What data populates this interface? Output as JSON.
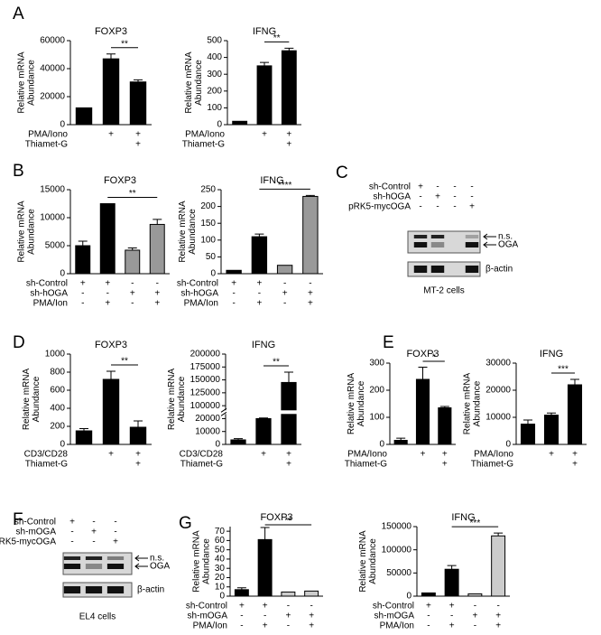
{
  "chart_data": [
    {
      "type": "bar",
      "panel": "A",
      "title": "FOXP3",
      "y_label": [
        "Relative mRNA",
        "Abundance"
      ],
      "values": [
        12000,
        47000,
        30500
      ],
      "errors": [
        null,
        3500,
        1500
      ],
      "colors": [
        "#000000",
        "#000000",
        "#000000"
      ],
      "ylim": [
        0,
        60000
      ],
      "yticks": [
        0,
        20000,
        40000,
        60000
      ],
      "conditions": [
        {
          "label": "PMA/Iono",
          "values": [
            null,
            "+",
            "+"
          ]
        },
        {
          "label": "Thiamet-G",
          "values": [
            null,
            null,
            "+"
          ]
        }
      ],
      "significance": {
        "label": "**",
        "from": 1,
        "to": 2
      }
    },
    {
      "type": "bar",
      "title": "IFNG",
      "y_label": [
        "Relative mRNA",
        "Abundance"
      ],
      "values": [
        20,
        350,
        440
      ],
      "errors": [
        null,
        20,
        15
      ],
      "colors": [
        "#000000",
        "#000000",
        "#000000"
      ],
      "ylim": [
        0,
        500
      ],
      "yticks": [
        0,
        100,
        200,
        300,
        400,
        500
      ],
      "conditions": [
        {
          "label": "PMA/Iono",
          "values": [
            null,
            "+",
            "+"
          ]
        },
        {
          "label": "Thiamet-G",
          "values": [
            null,
            null,
            "+"
          ]
        }
      ],
      "significance": {
        "label": "**",
        "from": 1,
        "to": 2
      }
    },
    {
      "type": "bar",
      "panel": "B",
      "title": "FOXP3",
      "y_label": [
        "Relative mRNA",
        "Abundance"
      ],
      "values": [
        5000,
        12500,
        4200,
        8800
      ],
      "errors": [
        800,
        null,
        400,
        900
      ],
      "colors": [
        "#000000",
        "#000000",
        "#999999",
        "#999999"
      ],
      "ylim": [
        0,
        15000
      ],
      "yticks": [
        0,
        5000,
        10000,
        15000
      ],
      "conditions": [
        {
          "label": "sh-Control",
          "values": [
            "+",
            "+",
            "-",
            "-"
          ]
        },
        {
          "label": "sh-hOGA",
          "values": [
            "-",
            "-",
            "+",
            "+"
          ]
        },
        {
          "label": "PMA/Ion",
          "values": [
            "-",
            "+",
            "-",
            "+"
          ]
        }
      ],
      "significance": {
        "label": "**",
        "from": 1,
        "to": 3
      }
    },
    {
      "type": "bar",
      "title": "IFNG",
      "y_label": [
        "Relative mRNA",
        "Abundance"
      ],
      "values": [
        10,
        110,
        25,
        230
      ],
      "errors": [
        null,
        8,
        null,
        3
      ],
      "colors": [
        "#000000",
        "#000000",
        "#999999",
        "#999999"
      ],
      "ylim": [
        0,
        250
      ],
      "yticks": [
        0,
        50,
        100,
        150,
        200,
        250
      ],
      "conditions": [
        {
          "label": "sh-Control",
          "values": [
            "+",
            "+",
            "-",
            "-"
          ]
        },
        {
          "label": "sh-hOGA",
          "values": [
            "-",
            "-",
            "+",
            "+"
          ]
        },
        {
          "label": "PMA/Ion",
          "values": [
            "-",
            "+",
            "-",
            "+"
          ]
        }
      ],
      "significance": {
        "label": "****",
        "from": 1,
        "to": 3
      }
    },
    {
      "type": "bar",
      "panel": "D",
      "title": "FOXP3",
      "y_label": [
        "Relative mRNA",
        "Abundance"
      ],
      "values": [
        150,
        720,
        190
      ],
      "errors": [
        25,
        90,
        70
      ],
      "colors": [
        "#000000",
        "#000000",
        "#000000"
      ],
      "ylim": [
        0,
        1000
      ],
      "yticks": [
        0,
        200,
        400,
        600,
        800,
        1000
      ],
      "conditions": [
        {
          "label": "CD3/CD28",
          "values": [
            null,
            "+",
            "+"
          ]
        },
        {
          "label": "Thiamet-G",
          "values": [
            null,
            null,
            "+"
          ]
        }
      ],
      "significance": {
        "label": "**",
        "from": 1,
        "to": 2
      }
    },
    {
      "type": "bar",
      "title": "IFNG",
      "y_label": [
        "Relative mRNA",
        "Abundance"
      ],
      "values": [
        3500,
        20000,
        145000
      ],
      "errors": [
        1000,
        4000,
        20000
      ],
      "colors": [
        "#000000",
        "#000000",
        "#000000"
      ],
      "ylim": [
        0,
        200000
      ],
      "yticks": [
        0,
        10000,
        20000,
        100000,
        125000,
        150000,
        175000,
        200000
      ],
      "axis_break": true,
      "conditions": [
        {
          "label": "CD3/CD28",
          "values": [
            null,
            "+",
            "+"
          ]
        },
        {
          "label": "Thiamet-G",
          "values": [
            null,
            null,
            "+"
          ]
        }
      ],
      "significance": {
        "label": "**",
        "from": 1,
        "to": 2
      }
    },
    {
      "type": "bar",
      "panel": "E",
      "title": "FOXP3",
      "y_label": [
        "Relative mRNA",
        "Abundance"
      ],
      "values": [
        15,
        240,
        135
      ],
      "errors": [
        8,
        45,
        5
      ],
      "colors": [
        "#000000",
        "#000000",
        "#000000"
      ],
      "ylim": [
        0,
        300
      ],
      "yticks": [
        0,
        100,
        200,
        300
      ],
      "conditions": [
        {
          "label": "PMA/Iono",
          "values": [
            null,
            "+",
            "+"
          ]
        },
        {
          "label": "Thiamet-G",
          "values": [
            null,
            null,
            "+"
          ]
        }
      ],
      "significance": {
        "label": "*",
        "from": 1,
        "to": 2
      }
    },
    {
      "type": "bar",
      "title": "IFNG",
      "y_label": [
        "Relative mRNA",
        "Abundance"
      ],
      "values": [
        7500,
        10800,
        22000
      ],
      "errors": [
        1500,
        800,
        2000
      ],
      "colors": [
        "#000000",
        "#000000",
        "#000000"
      ],
      "ylim": [
        0,
        30000
      ],
      "yticks": [
        0,
        10000,
        20000,
        30000
      ],
      "conditions": [
        {
          "label": "PMA/Iono",
          "values": [
            null,
            "+",
            "+"
          ]
        },
        {
          "label": "Thiamet-G",
          "values": [
            null,
            null,
            "+"
          ]
        }
      ],
      "significance": {
        "label": "***",
        "from": 1,
        "to": 2
      }
    },
    {
      "type": "bar",
      "panel": "G",
      "title": "FOXP3",
      "y_label": [
        "Relative mRNA",
        "Abundance"
      ],
      "values": [
        7,
        61,
        4.5,
        5.5
      ],
      "errors": [
        2,
        13,
        null,
        null
      ],
      "colors": [
        "#000000",
        "#000000",
        "#cccccc",
        "#cccccc"
      ],
      "ylim": [
        0,
        75
      ],
      "yticks": [
        0,
        10,
        20,
        30,
        40,
        50,
        60,
        70
      ],
      "conditions": [
        {
          "label": "sh-Control",
          "values": [
            "+",
            "+",
            "-",
            "-"
          ]
        },
        {
          "label": "sh-mOGA",
          "values": [
            "-",
            "-",
            "+",
            "+"
          ]
        },
        {
          "label": "PMA/Ion",
          "values": [
            "-",
            "+",
            "-",
            "+"
          ]
        }
      ],
      "significance": {
        "label": "**",
        "from": 1,
        "to": 3
      }
    },
    {
      "type": "bar",
      "title": "IFNG",
      "y_label": [
        "Relative mRNA",
        "Abundance"
      ],
      "values": [
        7000,
        58000,
        5000,
        130000
      ],
      "errors": [
        null,
        8000,
        null,
        6000
      ],
      "colors": [
        "#000000",
        "#000000",
        "#cccccc",
        "#cccccc"
      ],
      "ylim": [
        0,
        150000
      ],
      "yticks": [
        0,
        50000,
        100000,
        150000
      ],
      "conditions": [
        {
          "label": "sh-Control",
          "values": [
            "+",
            "+",
            "-",
            "-"
          ]
        },
        {
          "label": "sh-mOGA",
          "values": [
            "-",
            "-",
            "+",
            "+"
          ]
        },
        {
          "label": "PMA/Ion",
          "values": [
            "-",
            "+",
            "-",
            "+"
          ]
        }
      ],
      "significance": {
        "label": "***",
        "from": 1,
        "to": 3
      }
    }
  ],
  "blots": [
    {
      "panel": "C",
      "conditions": [
        {
          "label": "sh-Control",
          "values": [
            "+",
            "-",
            "-",
            "-"
          ]
        },
        {
          "label": "sh-hOGA",
          "values": [
            "-",
            "+",
            "-",
            "-"
          ]
        },
        {
          "label": "pRK5-mycOGA",
          "values": [
            "-",
            "-",
            "-",
            "+"
          ]
        }
      ],
      "bands": [
        "n.s.",
        "OGA",
        "β-actin"
      ],
      "cell_line": "MT-2 cells"
    },
    {
      "panel": "F",
      "conditions": [
        {
          "label": "sh-Control",
          "values": [
            "+",
            "-",
            "-"
          ]
        },
        {
          "label": "sh-mOGA",
          "values": [
            "-",
            "+",
            "-"
          ]
        },
        {
          "label": "pRK5-mycOGA",
          "values": [
            "-",
            "-",
            "+"
          ]
        }
      ],
      "bands": [
        "n.s.",
        "OGA",
        "β-actin"
      ],
      "cell_line": "EL4 cells"
    }
  ]
}
